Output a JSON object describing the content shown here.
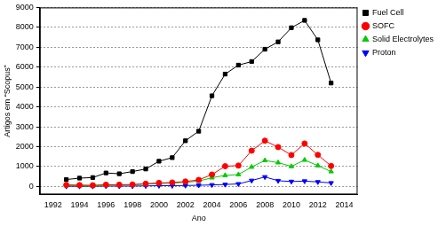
{
  "chart_data": {
    "type": "line",
    "x_label": "Ano",
    "y_label": "Artigos em “Scopus”",
    "x": [
      1993,
      1994,
      1995,
      1996,
      1997,
      1998,
      1999,
      2000,
      2001,
      2002,
      2003,
      2004,
      2005,
      2006,
      2007,
      2008,
      2009,
      2010,
      2011,
      2012,
      2013
    ],
    "series": [
      {
        "name": "Fuel Cell",
        "color": "#000000",
        "marker": "square",
        "values": [
          350,
          420,
          450,
          680,
          640,
          750,
          880,
          1270,
          1450,
          2300,
          2780,
          4560,
          5650,
          6100,
          6280,
          6900,
          7270,
          7980,
          8350,
          7370,
          5200
        ]
      },
      {
        "name": "SOFC",
        "color": "#ff0000",
        "marker": "circle",
        "values": [
          80,
          70,
          60,
          90,
          90,
          100,
          140,
          180,
          200,
          250,
          330,
          600,
          1020,
          1050,
          1800,
          2300,
          1980,
          1580,
          2160,
          1590,
          1030
        ]
      },
      {
        "name": "Solid Electrolytes",
        "color": "#00cc00",
        "marker": "triangle",
        "values": [
          50,
          40,
          30,
          60,
          70,
          80,
          120,
          150,
          170,
          210,
          270,
          440,
          560,
          600,
          980,
          1310,
          1200,
          1010,
          1330,
          1050,
          750
        ]
      },
      {
        "name": "Proton",
        "color": "#0000ff",
        "marker": "triangle_down",
        "values": [
          10,
          10,
          10,
          20,
          20,
          20,
          30,
          40,
          40,
          50,
          60,
          80,
          100,
          130,
          300,
          480,
          290,
          250,
          270,
          230,
          180
        ]
      }
    ],
    "xlim": [
      1991,
      2015
    ],
    "xticks": [
      1992,
      1994,
      1996,
      1998,
      2000,
      2002,
      2004,
      2006,
      2008,
      2010,
      2012,
      2014
    ],
    "ylim": [
      -400,
      9000
    ],
    "yticks": [
      0,
      1000,
      2000,
      3000,
      4000,
      5000,
      6000,
      7000,
      8000,
      9000
    ],
    "grid": true,
    "legend": "upper right"
  }
}
